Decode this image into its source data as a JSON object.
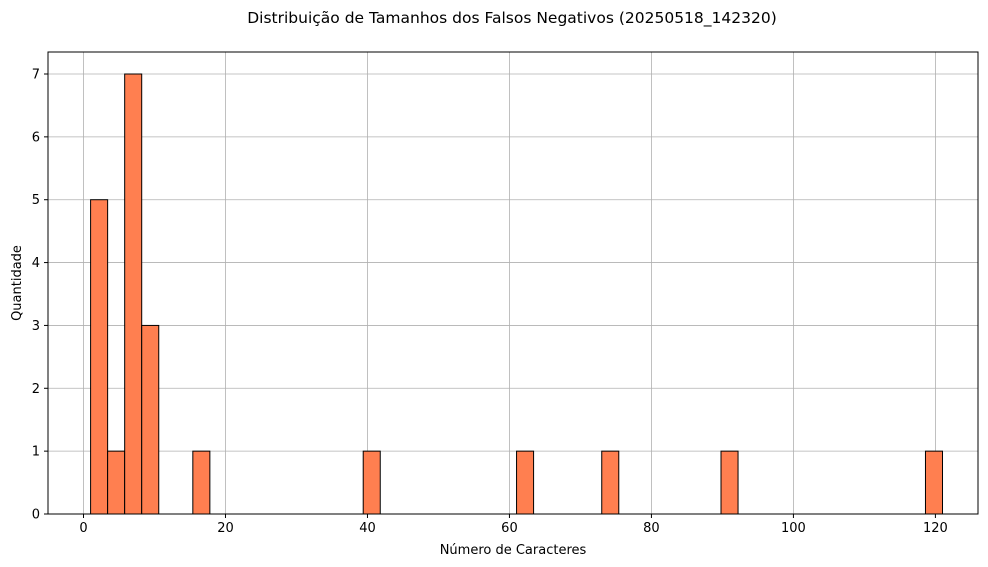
{
  "chart_data": {
    "type": "bar",
    "title": "Distribuição de Tamanhos dos Falsos Negativos (20250518_142320)",
    "xlabel": "Número de Caracteres",
    "ylabel": "Quantidade",
    "xlim": [
      -5,
      126
    ],
    "ylim": [
      0,
      7.35
    ],
    "xticks": [
      0,
      20,
      40,
      60,
      80,
      100,
      120
    ],
    "yticks": [
      0,
      1,
      2,
      3,
      4,
      5,
      6,
      7
    ],
    "grid": true,
    "bar_color": "#ff7f50",
    "edge_color": "#000000",
    "bin_width": 2.4,
    "bins": [
      {
        "x0": 1.0,
        "count": 5
      },
      {
        "x0": 3.4,
        "count": 0
      },
      {
        "x0": 3.4,
        "count": 1
      },
      {
        "x0": 5.8,
        "count": 7
      },
      {
        "x0": 8.2,
        "count": 3
      },
      {
        "x0": 15.4,
        "count": 1
      },
      {
        "x0": 39.4,
        "count": 1
      },
      {
        "x0": 61.0,
        "count": 1
      },
      {
        "x0": 73.0,
        "count": 1
      },
      {
        "x0": 89.8,
        "count": 1
      },
      {
        "x0": 118.6,
        "count": 1
      }
    ],
    "baseline": {
      "from": 1.0,
      "to": 121.0
    }
  }
}
